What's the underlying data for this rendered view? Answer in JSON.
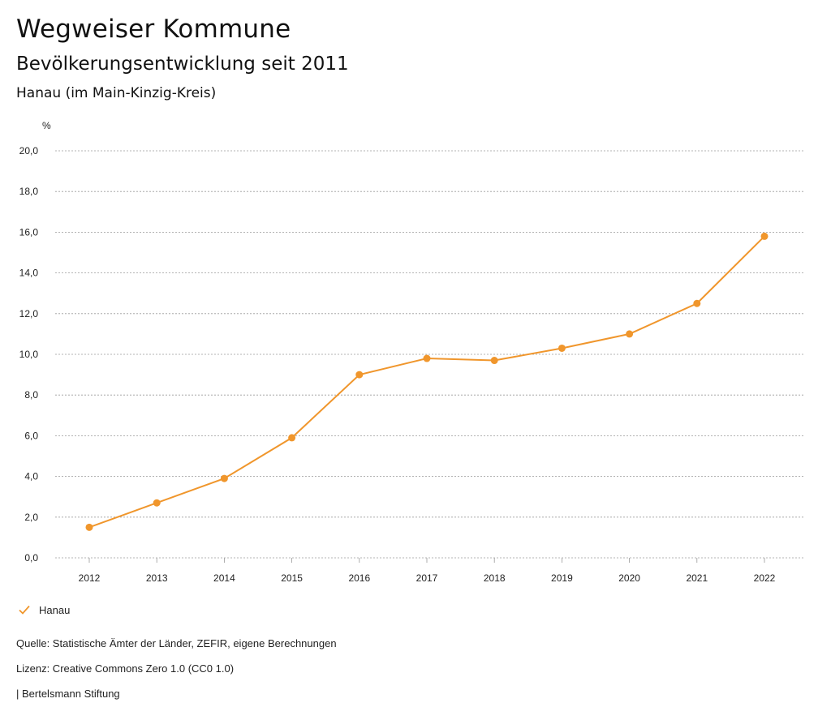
{
  "header": {
    "title": "Wegweiser Kommune",
    "subtitle": "Bevölkerungsentwicklung seit 2011",
    "place": "Hanau (im Main-Kinzig-Kreis)"
  },
  "chart_data": {
    "type": "line",
    "x": [
      "2012",
      "2013",
      "2014",
      "2015",
      "2016",
      "2017",
      "2018",
      "2019",
      "2020",
      "2021",
      "2022"
    ],
    "series": [
      {
        "name": "Hanau",
        "values": [
          1.5,
          2.7,
          3.9,
          5.9,
          9.0,
          9.8,
          9.7,
          10.3,
          11.0,
          12.5,
          15.8
        ],
        "color": "#f0962c"
      }
    ],
    "ylabel": "%",
    "ylim": [
      0,
      20
    ],
    "yticks": [
      "0,0",
      "2,0",
      "4,0",
      "6,0",
      "8,0",
      "10,0",
      "12,0",
      "14,0",
      "16,0",
      "18,0",
      "20,0"
    ],
    "grid": true,
    "legend": "bottom-left"
  },
  "legend": {
    "label": "Hanau"
  },
  "footer": {
    "source": "Quelle: Statistische Ämter der Länder, ZEFIR, eigene Berechnungen",
    "license": "Lizenz: Creative Commons Zero 1.0 (CC0 1.0)",
    "publisher": "| Bertelsmann Stiftung"
  }
}
